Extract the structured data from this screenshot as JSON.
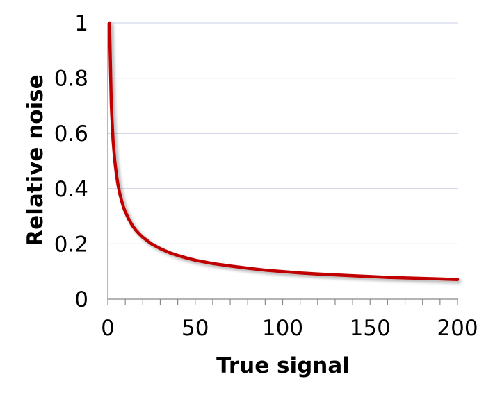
{
  "chart_data": {
    "type": "line",
    "title": "",
    "xlabel": "True signal",
    "ylabel": "Relative noise",
    "xlim": [
      0,
      200
    ],
    "ylim": [
      0,
      1
    ],
    "x_ticks": [
      0,
      50,
      100,
      150,
      200
    ],
    "x_tick_labels": [
      "0",
      "50",
      "100",
      "150",
      "200"
    ],
    "x_minor_step": 10,
    "y_ticks": [
      0,
      0.2,
      0.4,
      0.6,
      0.8,
      1
    ],
    "y_tick_labels": [
      "0",
      "0.2",
      "0.4",
      "0.6",
      "0.8",
      "1"
    ],
    "grid": "horizontal",
    "series": [
      {
        "name": "Relative noise",
        "color": "#c00000",
        "x": [
          1,
          2,
          3,
          4,
          5,
          6,
          7,
          8,
          9,
          10,
          12,
          14,
          16,
          18,
          20,
          25,
          30,
          35,
          40,
          45,
          50,
          60,
          70,
          80,
          90,
          100,
          110,
          120,
          130,
          140,
          150,
          160,
          170,
          180,
          190,
          200
        ],
        "y": [
          1.0,
          0.707,
          0.577,
          0.5,
          0.447,
          0.408,
          0.378,
          0.354,
          0.333,
          0.316,
          0.289,
          0.267,
          0.25,
          0.236,
          0.224,
          0.2,
          0.183,
          0.169,
          0.158,
          0.149,
          0.141,
          0.129,
          0.12,
          0.112,
          0.105,
          0.1,
          0.095,
          0.091,
          0.088,
          0.085,
          0.082,
          0.079,
          0.077,
          0.075,
          0.073,
          0.071
        ]
      }
    ]
  },
  "colors": {
    "series": "#c00000",
    "gridline": "#c8cce4",
    "axis": "#888888",
    "text": "#000000"
  }
}
